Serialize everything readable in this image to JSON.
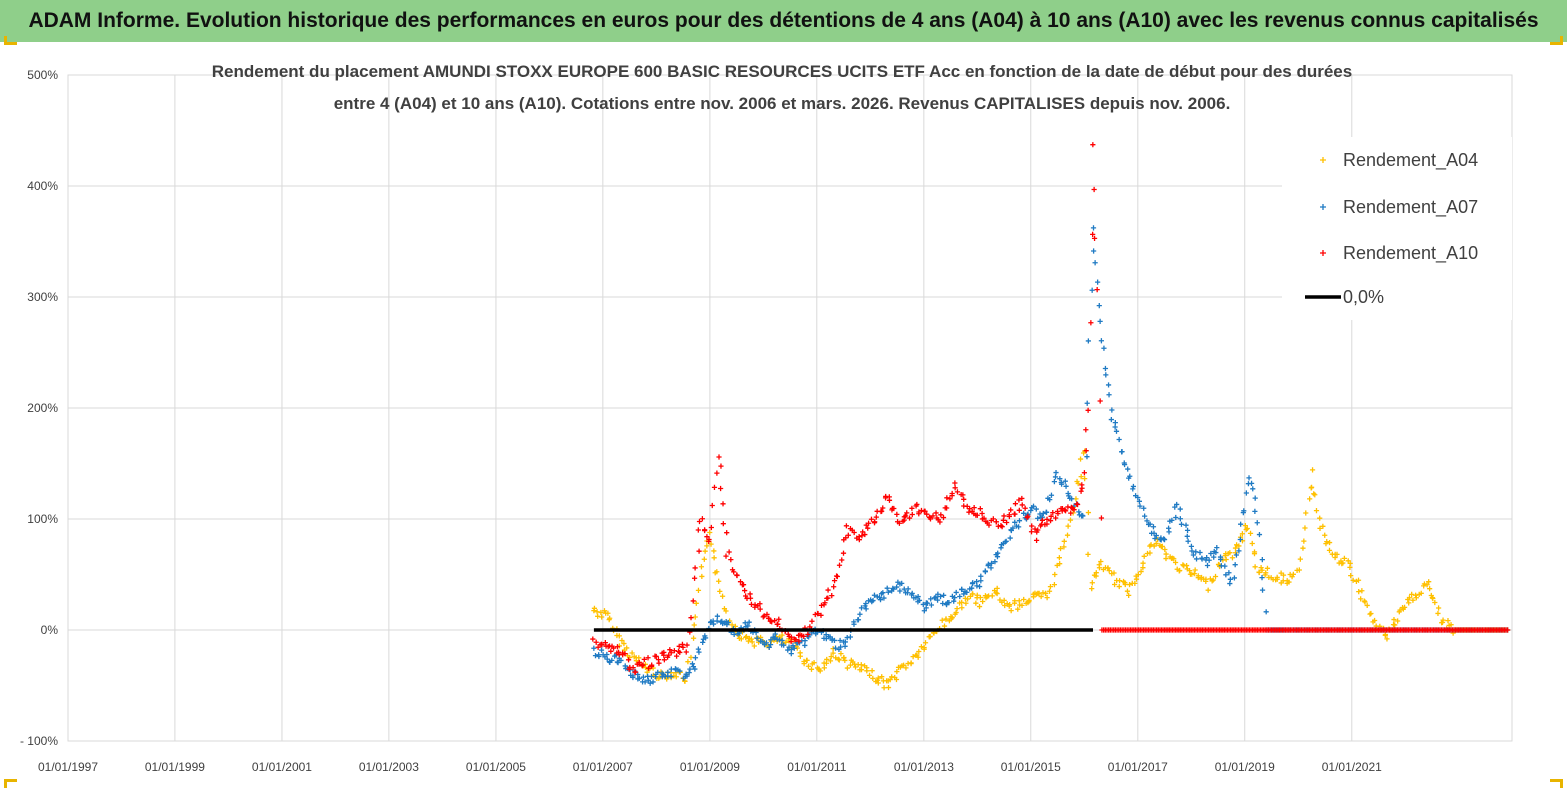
{
  "header": {
    "title": "ADAM Informe. Evolution historique des performances en euros pour des détentions de 4 ans (A04) à 10 ans (A10) avec les revenus connus capitalisés"
  },
  "chart_data": {
    "type": "scatter",
    "title_lines": [
      "Rendement du placement AMUNDI STOXX EUROPE 600 BASIC RESOURCES UCITS ETF Acc en fonction de la date de début pour des durées",
      "entre 4 (A04) et 10 ans (A10). Cotations entre nov. 2006 et mars. 2026. Revenus CAPITALISES depuis nov. 2006."
    ],
    "xlim": [
      "1997-01-01",
      "2023-12-31"
    ],
    "ylim": [
      -100,
      500
    ],
    "x_ticks": [
      "01/01/1997",
      "01/01/1999",
      "01/01/2001",
      "01/01/2003",
      "01/01/2005",
      "01/01/2007",
      "01/01/2009",
      "01/01/2011",
      "01/01/2013",
      "01/01/2015",
      "01/01/2017",
      "01/01/2019",
      "01/01/2021"
    ],
    "y_ticks": [
      {
        "value": -100,
        "label": "- 100%"
      },
      {
        "value": 0,
        "label": "0%"
      },
      {
        "value": 100,
        "label": "100%"
      },
      {
        "value": 200,
        "label": "200%"
      },
      {
        "value": 300,
        "label": "300%"
      },
      {
        "value": 400,
        "label": "400%"
      },
      {
        "value": 500,
        "label": "500%"
      }
    ],
    "legend_position": "top-right",
    "series": [
      {
        "name": "Rendement_A04",
        "color": "#ffc000",
        "marker": "plus",
        "x": [
          "2006-11-01",
          "2007-02-01",
          "2007-05-01",
          "2007-08-01",
          "2007-11-01",
          "2008-02-01",
          "2008-05-01",
          "2008-08-01",
          "2008-11-01",
          "2009-01-01",
          "2009-02-15",
          "2009-05-01",
          "2009-08-01",
          "2009-11-01",
          "2010-02-01",
          "2010-05-01",
          "2010-08-01",
          "2010-11-01",
          "2011-02-01",
          "2011-05-01",
          "2011-08-01",
          "2011-11-01",
          "2012-02-01",
          "2012-05-01",
          "2012-08-01",
          "2012-11-01",
          "2013-02-01",
          "2013-05-01",
          "2013-08-01",
          "2013-11-01",
          "2014-02-01",
          "2014-05-01",
          "2014-08-01",
          "2014-11-01",
          "2015-02-01",
          "2015-05-01",
          "2015-08-01",
          "2015-11-01",
          "2016-01-01",
          "2016-02-15",
          "2016-05-01",
          "2016-08-01",
          "2016-11-01",
          "2017-02-01",
          "2017-05-01",
          "2017-08-01",
          "2017-11-01",
          "2018-02-01",
          "2018-05-01",
          "2018-08-01",
          "2018-11-01",
          "2019-01-15",
          "2019-04-01",
          "2019-07-01",
          "2019-10-01",
          "2020-01-01",
          "2020-04-01",
          "2020-06-01",
          "2020-09-01",
          "2020-12-01",
          "2021-03-01",
          "2021-06-01",
          "2021-09-01",
          "2021-12-01",
          "2022-03-01",
          "2022-06-01",
          "2022-09-01",
          "2022-12-01",
          "2023-03-01",
          "2023-06-01",
          "2023-09-01",
          "2023-12-01"
        ],
        "y": [
          18,
          12,
          -10,
          -25,
          -35,
          -42,
          -38,
          -44,
          45,
          90,
          55,
          10,
          -5,
          -10,
          -12,
          -8,
          -15,
          -30,
          -35,
          -20,
          -30,
          -35,
          -42,
          -50,
          -35,
          -25,
          -10,
          5,
          15,
          30,
          25,
          35,
          20,
          25,
          30,
          30,
          70,
          120,
          165,
          40,
          60,
          45,
          35,
          60,
          80,
          65,
          55,
          50,
          40,
          65,
          70,
          95,
          55,
          50,
          45,
          50,
          140,
          95,
          65,
          60,
          35,
          5,
          -5,
          15,
          30,
          42,
          8,
          0,
          0,
          0,
          0,
          0
        ]
      },
      {
        "name": "Rendement_A07",
        "color": "#1f7ac3",
        "marker": "plus",
        "x": [
          "2006-11-01",
          "2007-02-01",
          "2007-05-01",
          "2007-08-01",
          "2007-11-01",
          "2008-02-01",
          "2008-05-01",
          "2008-08-01",
          "2008-10-01",
          "2009-01-01",
          "2009-04-01",
          "2009-07-01",
          "2009-10-01",
          "2010-01-01",
          "2010-04-01",
          "2010-07-01",
          "2010-10-01",
          "2011-01-01",
          "2011-04-01",
          "2011-07-01",
          "2011-10-01",
          "2012-01-01",
          "2012-04-01",
          "2012-07-01",
          "2012-10-01",
          "2013-01-01",
          "2013-04-01",
          "2013-07-01",
          "2013-10-01",
          "2014-01-01",
          "2014-04-01",
          "2014-07-01",
          "2014-10-01",
          "2015-01-01",
          "2015-04-01",
          "2015-07-01",
          "2015-10-01",
          "2016-01-01",
          "2016-03-01",
          "2016-05-01",
          "2016-07-01",
          "2016-10-01",
          "2017-01-01",
          "2017-04-01",
          "2017-07-01",
          "2017-10-01",
          "2018-01-01",
          "2018-04-01",
          "2018-07-01",
          "2018-10-01",
          "2019-01-01",
          "2019-02-01",
          "2019-04-01",
          "2019-06-01",
          "2019-09-01",
          "2019-12-01",
          "2020-06-01",
          "2021-01-01",
          "2021-06-01",
          "2022-01-01",
          "2022-06-01",
          "2023-01-01",
          "2023-12-01"
        ],
        "y": [
          -20,
          -25,
          -28,
          -40,
          -45,
          -42,
          -38,
          -40,
          -28,
          5,
          10,
          -5,
          5,
          -15,
          -5,
          -20,
          -10,
          0,
          -10,
          -15,
          10,
          25,
          30,
          40,
          35,
          20,
          30,
          25,
          35,
          40,
          60,
          80,
          95,
          110,
          100,
          140,
          120,
          100,
          360,
          260,
          200,
          150,
          120,
          90,
          80,
          110,
          75,
          60,
          70,
          40,
          110,
          140,
          100,
          0,
          0,
          0,
          0,
          0,
          0,
          0,
          0,
          0,
          0
        ]
      },
      {
        "name": "Rendement_A10",
        "color": "#ff0000",
        "marker": "plus",
        "x": [
          "2006-11-01",
          "2007-02-01",
          "2007-05-01",
          "2007-08-01",
          "2007-11-01",
          "2008-02-01",
          "2008-05-01",
          "2008-08-01",
          "2008-11-01",
          "2009-01-01",
          "2009-03-01",
          "2009-05-01",
          "2009-08-01",
          "2009-11-01",
          "2010-02-01",
          "2010-05-01",
          "2010-08-01",
          "2010-11-01",
          "2011-02-01",
          "2011-05-01",
          "2011-08-01",
          "2011-11-01",
          "2012-02-01",
          "2012-05-01",
          "2012-08-01",
          "2012-11-01",
          "2013-02-01",
          "2013-05-01",
          "2013-08-01",
          "2013-11-01",
          "2014-02-01",
          "2014-05-01",
          "2014-08-01",
          "2014-11-01",
          "2015-02-01",
          "2015-05-01",
          "2015-08-01",
          "2015-11-01",
          "2016-01-01",
          "2016-02-01",
          "2016-03-01",
          "2016-04-01",
          "2016-05-01",
          "2016-08-01",
          "2016-11-01",
          "2017-06-01",
          "2018-01-01",
          "2018-06-01",
          "2019-01-01",
          "2019-06-01",
          "2020-01-01",
          "2020-06-01",
          "2021-01-01",
          "2021-06-01",
          "2022-01-01",
          "2022-06-01",
          "2023-01-01",
          "2023-06-01",
          "2023-12-01"
        ],
        "y": [
          -10,
          -15,
          -20,
          -35,
          -30,
          -25,
          -20,
          -15,
          100,
          80,
          160,
          70,
          40,
          25,
          10,
          5,
          -10,
          0,
          20,
          40,
          90,
          85,
          100,
          120,
          95,
          110,
          105,
          100,
          130,
          110,
          105,
          95,
          100,
          115,
          85,
          100,
          110,
          105,
          140,
          200,
          440,
          310,
          0,
          0,
          0,
          0,
          0,
          0,
          0,
          0,
          0,
          0,
          0,
          0,
          0,
          0,
          0,
          0,
          0
        ]
      },
      {
        "name": "0,0%",
        "color": "#000000",
        "marker": "line",
        "x": [
          "2006-11-01",
          "2016-03-01"
        ],
        "y": [
          0,
          0
        ]
      }
    ]
  }
}
